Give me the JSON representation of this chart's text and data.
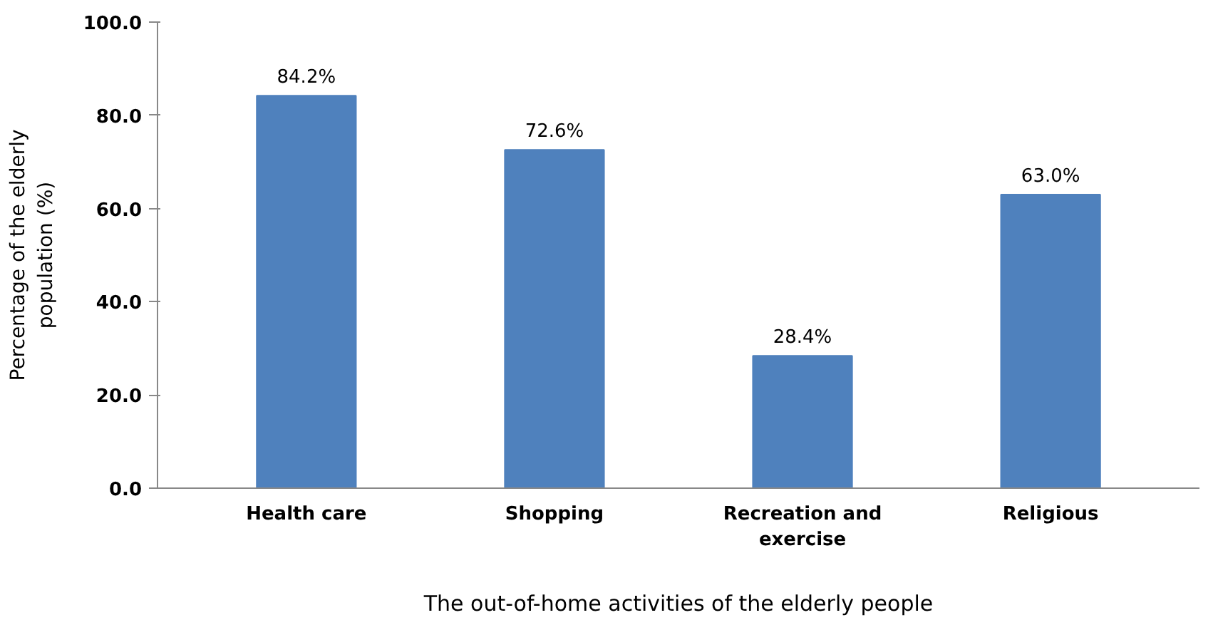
{
  "chart_data": {
    "type": "bar",
    "xlabel": "The out-of-home activities of the elderly people",
    "ylabel": "Percentage of the elderly population (%)",
    "categories": [
      "Health care",
      "Shopping",
      "Recreation and exercise",
      "Religious"
    ],
    "values": [
      84.2,
      72.6,
      28.4,
      63.0
    ],
    "value_labels": [
      "84.2%",
      "72.6%",
      "28.4%",
      "63.0%"
    ],
    "color": "#4f81bd",
    "ylim": [
      0,
      100
    ],
    "yticks": [
      {
        "value": 0,
        "label": "0.0"
      },
      {
        "value": 20,
        "label": "20.0"
      },
      {
        "value": 40,
        "label": "40.0"
      },
      {
        "value": 60,
        "label": "60.0"
      },
      {
        "value": 80,
        "label": "80.0"
      },
      {
        "value": 100,
        "label": "100.0"
      }
    ],
    "grid": false
  }
}
